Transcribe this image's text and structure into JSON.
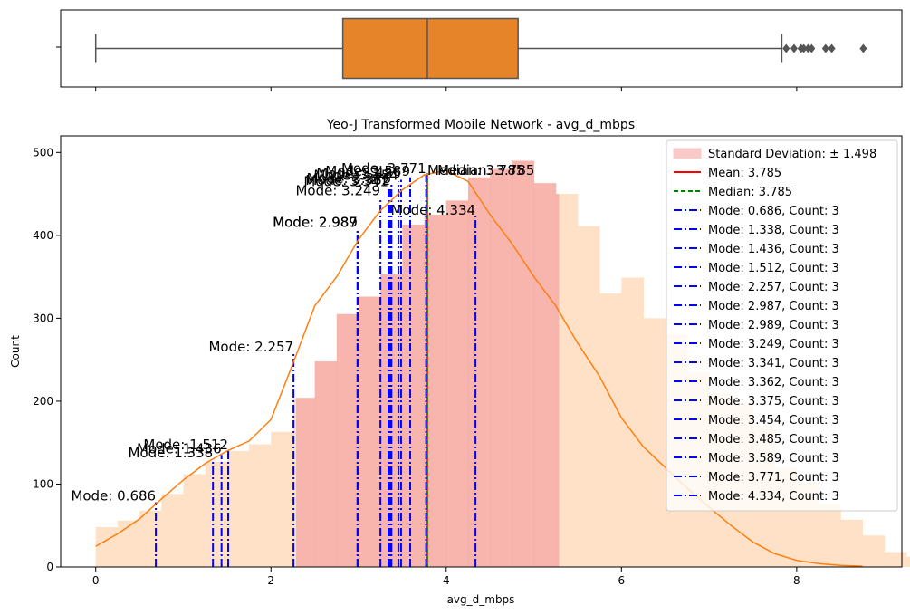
{
  "chart_data": [
    {
      "type": "box",
      "orientation": "horizontal",
      "box_color": "#e6842a",
      "whisker_low": 0.0,
      "q1": 2.82,
      "median": 3.785,
      "q3": 4.82,
      "whisker_high": 7.83,
      "outliers": [
        7.88,
        7.97,
        8.05,
        8.08,
        8.13,
        8.17,
        8.33,
        8.4,
        8.76
      ],
      "xlim": [
        -0.4,
        9.2
      ],
      "y_tick_labels": [
        ""
      ]
    },
    {
      "type": "histogram",
      "title": "Yeo-J Transformed Mobile Network - avg_d_mbps",
      "xlabel": "avg_d_mbps",
      "ylabel": "Count",
      "xlim": [
        -0.4,
        9.2
      ],
      "ylim": [
        0,
        520
      ],
      "x_ticks": [
        0,
        2,
        4,
        6,
        8
      ],
      "y_ticks": [
        0,
        100,
        200,
        300,
        400,
        500
      ],
      "bin_width": 0.25,
      "bin_start": 0,
      "counts": [
        48,
        56,
        68,
        88,
        112,
        127,
        140,
        148,
        163,
        204,
        248,
        305,
        326,
        353,
        413,
        425,
        442,
        470,
        480,
        490,
        463,
        450,
        411,
        330,
        349,
        300,
        281,
        235,
        210,
        198,
        170,
        120,
        102,
        76,
        57,
        38,
        18,
        12,
        5,
        5,
        1,
        2,
        1,
        0,
        1
      ],
      "bar_color": "#ffe1c7",
      "kde_color": "#ff7f0e",
      "kde_x": [
        0,
        0.25,
        0.5,
        0.75,
        1.0,
        1.25,
        1.5,
        1.75,
        2.0,
        2.25,
        2.5,
        2.75,
        3.0,
        3.25,
        3.5,
        3.75,
        4.0,
        4.25,
        4.5,
        4.75,
        5.0,
        5.25,
        5.5,
        5.75,
        6.0,
        6.25,
        6.5,
        6.75,
        7.0,
        7.25,
        7.5,
        7.75,
        8.0,
        8.25,
        8.5,
        8.75
      ],
      "kde_y": [
        25,
        40,
        58,
        82,
        105,
        125,
        140,
        152,
        178,
        245,
        315,
        350,
        395,
        430,
        455,
        473,
        478,
        465,
        425,
        390,
        350,
        315,
        270,
        230,
        180,
        145,
        120,
        95,
        72,
        50,
        30,
        16,
        8,
        4,
        2,
        1
      ],
      "std_band": {
        "low": 2.287,
        "high": 5.283,
        "color": "#f4a6a6",
        "label": "Standard Deviation: ± 1.498"
      },
      "mean": {
        "value": 3.785,
        "label": "Mean: 3.785",
        "color": "#ff0000"
      },
      "median_line": {
        "value": 3.785,
        "label": "Median: 3.785",
        "color": "#008000"
      },
      "modes": [
        {
          "value": 0.686,
          "count": 3,
          "height": 78,
          "label": "Mode: 0.686",
          "legend": "Mode: 0.686, Count: 3"
        },
        {
          "value": 1.338,
          "count": 3,
          "height": 130,
          "label": "Mode: 1.338",
          "legend": "Mode: 1.338, Count: 3"
        },
        {
          "value": 1.436,
          "count": 3,
          "height": 135,
          "label": "Mode: 1.436",
          "legend": "Mode: 1.436, Count: 3"
        },
        {
          "value": 1.512,
          "count": 3,
          "height": 140,
          "label": "Mode: 1.512",
          "legend": "Mode: 1.512, Count: 3"
        },
        {
          "value": 2.257,
          "count": 3,
          "height": 258,
          "label": "Mode: 2.257",
          "legend": "Mode: 2.257, Count: 3"
        },
        {
          "value": 2.987,
          "count": 3,
          "height": 408,
          "label": "Mode: 2.987",
          "legend": "Mode: 2.987, Count: 3"
        },
        {
          "value": 2.989,
          "count": 3,
          "height": 408,
          "label": "Mode: 2.989",
          "legend": "Mode: 2.989, Count: 3"
        },
        {
          "value": 3.249,
          "count": 3,
          "height": 446,
          "label": "Mode: 3.249",
          "legend": "Mode: 3.249, Count: 3"
        },
        {
          "value": 3.341,
          "count": 3,
          "height": 457,
          "label": "Mode: 3.341",
          "legend": "Mode: 3.341, Count: 3"
        },
        {
          "value": 3.362,
          "count": 3,
          "height": 459,
          "label": "Mode: 3.362",
          "legend": "Mode: 3.362, Count: 3"
        },
        {
          "value": 3.375,
          "count": 3,
          "height": 461,
          "label": "Mode: 3.375",
          "legend": "Mode: 3.375, Count: 3"
        },
        {
          "value": 3.454,
          "count": 3,
          "height": 465,
          "label": "Mode: 3.454",
          "legend": "Mode: 3.454, Count: 3"
        },
        {
          "value": 3.485,
          "count": 3,
          "height": 467,
          "label": "Mode: 3.485",
          "legend": "Mode: 3.485, Count: 3"
        },
        {
          "value": 3.589,
          "count": 3,
          "height": 470,
          "label": "Mode: 3.589",
          "legend": "Mode: 3.589, Count: 3"
        },
        {
          "value": 3.771,
          "count": 3,
          "height": 473,
          "label": "Mode: 3.771",
          "legend": "Mode: 3.771, Count: 3"
        },
        {
          "value": 4.334,
          "count": 3,
          "height": 423,
          "label": "Mode: 4.334",
          "legend": "Mode: 4.334, Count: 3"
        }
      ],
      "annotations": [
        {
          "text": "Median: 3.785",
          "x": 3.785,
          "y": 473
        },
        {
          "text": "Median: 3.785",
          "x": 3.9,
          "y": 473
        }
      ],
      "mode_color": "#0000ff",
      "legend_position": "upper right"
    }
  ]
}
